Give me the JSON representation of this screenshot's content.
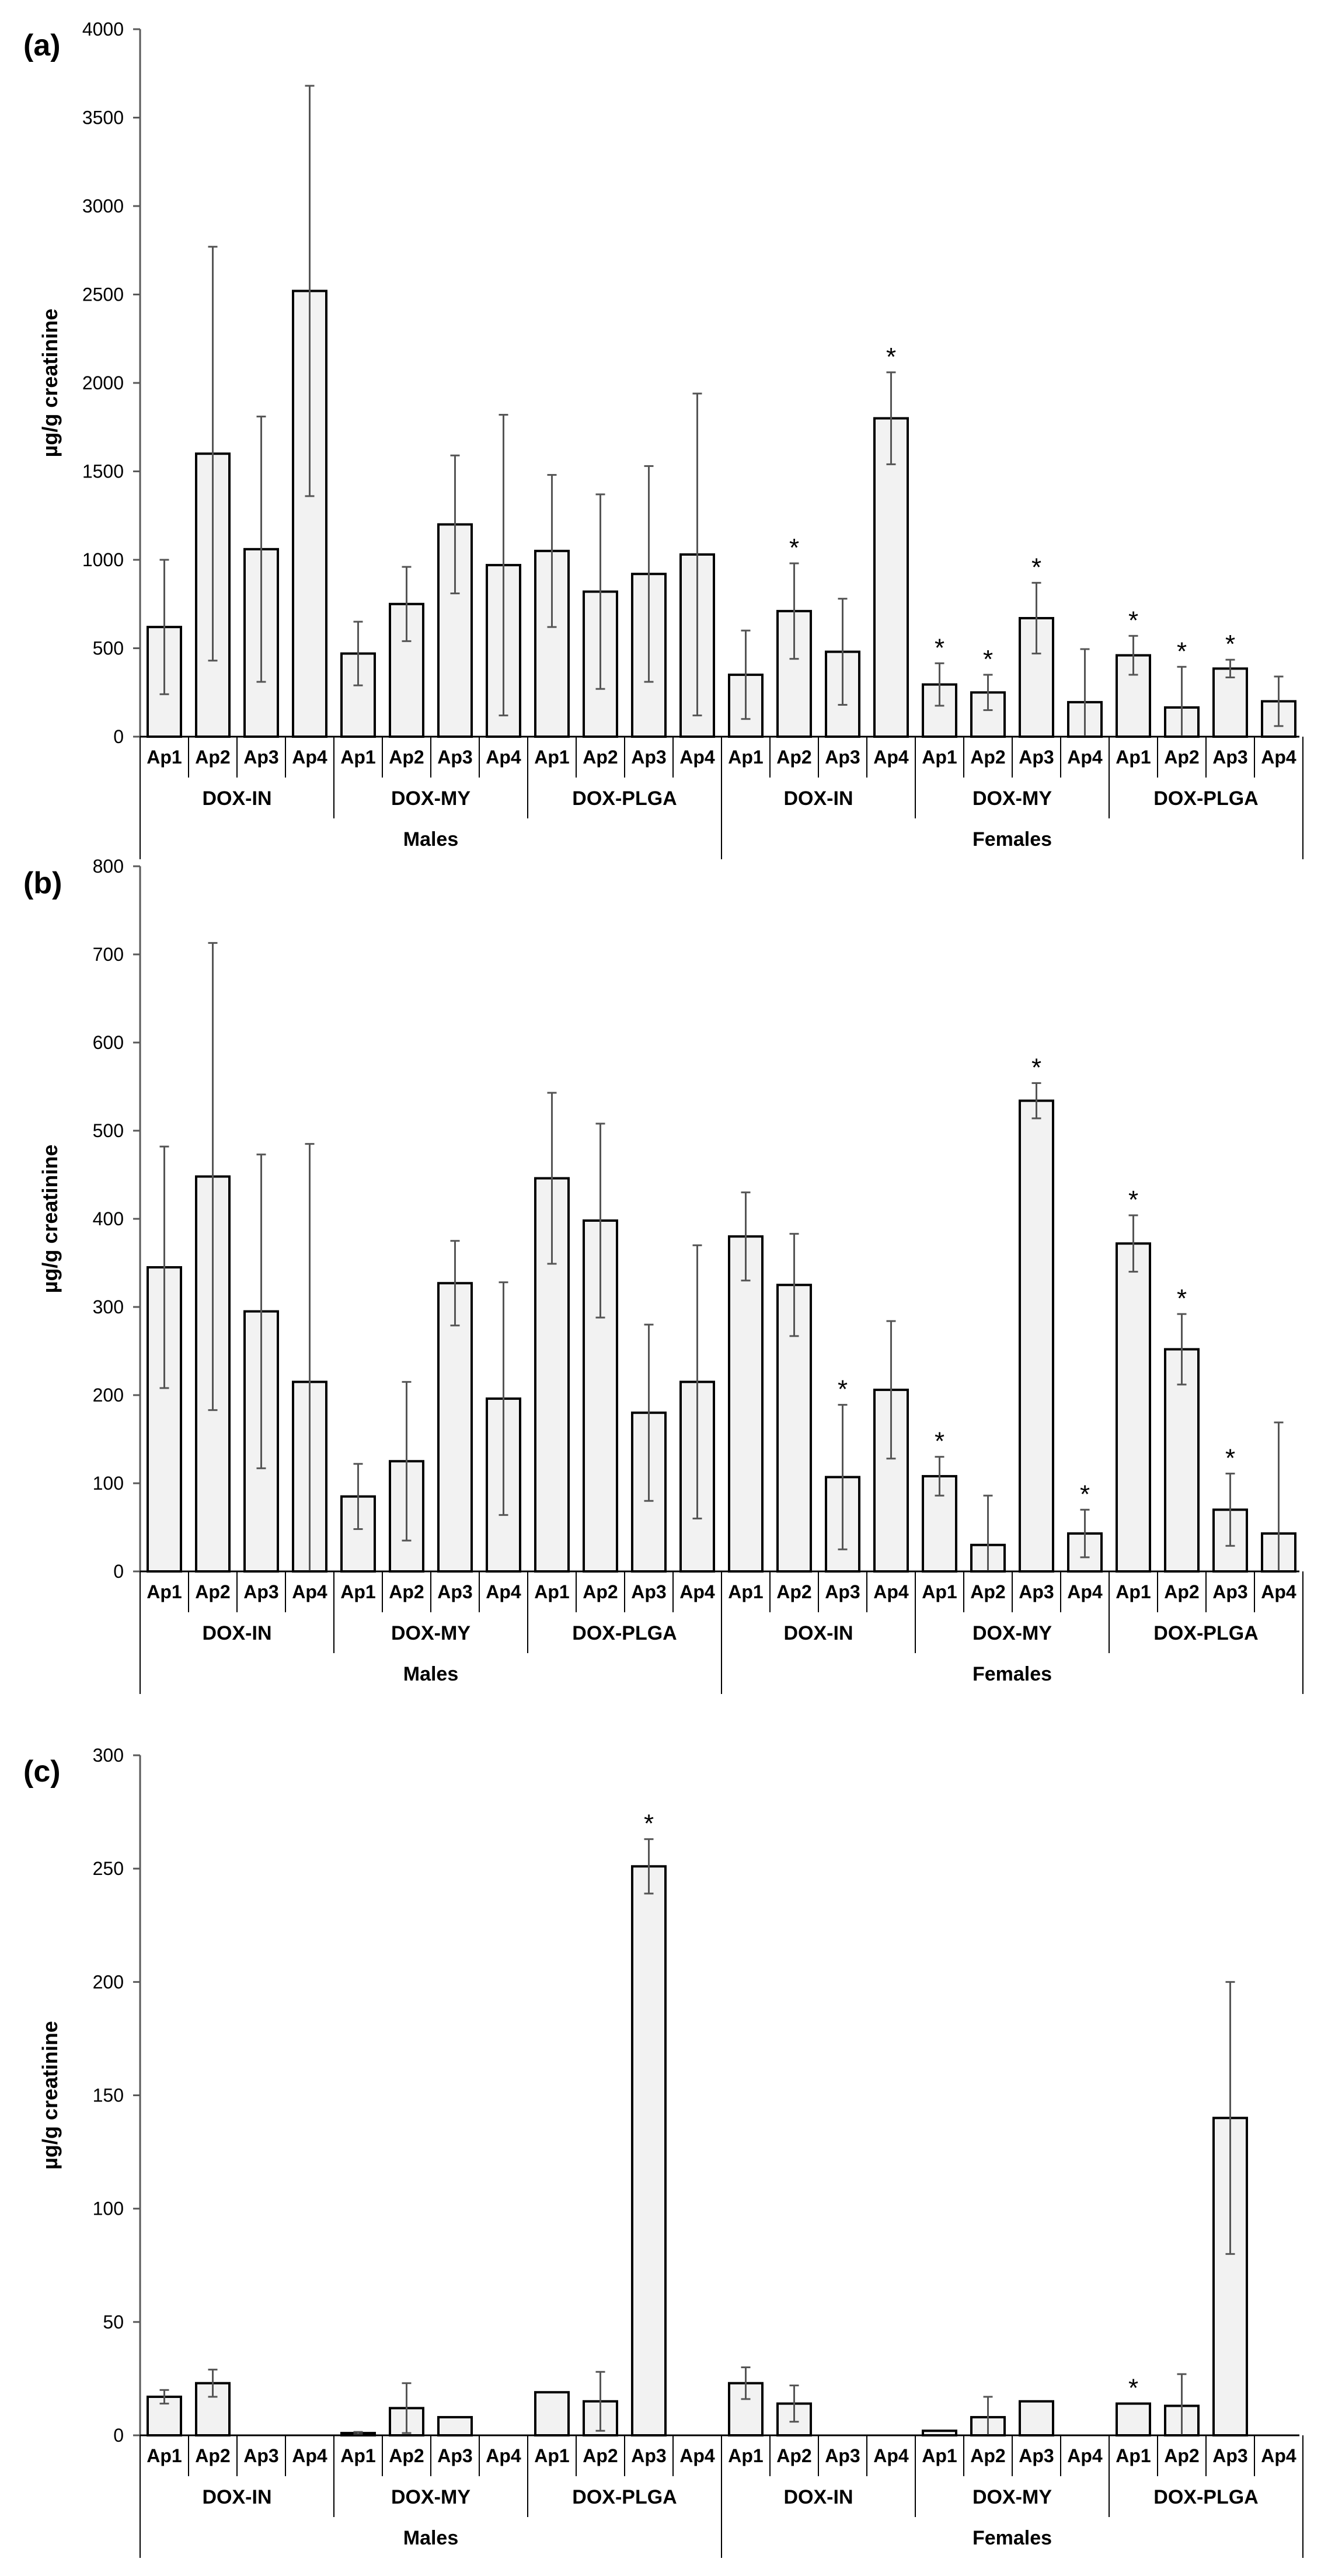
{
  "chart_data": [
    {
      "type": "bar",
      "panel_label": "(a)",
      "ylabel": "µg/g creatinine",
      "ylim": [
        0,
        4000
      ],
      "yticks": [
        0,
        500,
        1000,
        1500,
        2000,
        2500,
        3000,
        3500,
        4000
      ],
      "categories": [
        "Ap1",
        "Ap2",
        "Ap3",
        "Ap4",
        "Ap1",
        "Ap2",
        "Ap3",
        "Ap4",
        "Ap1",
        "Ap2",
        "Ap3",
        "Ap4",
        "Ap1",
        "Ap2",
        "Ap3",
        "Ap4",
        "Ap1",
        "Ap2",
        "Ap3",
        "Ap4",
        "Ap1",
        "Ap2",
        "Ap3",
        "Ap4"
      ],
      "groups": [
        {
          "label": "DOX-IN",
          "span": 4
        },
        {
          "label": "DOX-MY",
          "span": 4
        },
        {
          "label": "DOX-PLGA",
          "span": 4
        },
        {
          "label": "DOX-IN",
          "span": 4
        },
        {
          "label": "DOX-MY",
          "span": 4
        },
        {
          "label": "DOX-PLGA",
          "span": 4
        }
      ],
      "sexes": [
        {
          "label": "Males",
          "span": 12
        },
        {
          "label": "Females",
          "span": 12
        }
      ],
      "values": [
        620,
        1600,
        1060,
        2520,
        470,
        750,
        1200,
        970,
        1050,
        820,
        920,
        1030,
        350,
        710,
        480,
        1800,
        295,
        250,
        670,
        195,
        460,
        165,
        385,
        200
      ],
      "errors": [
        380,
        1170,
        750,
        1160,
        180,
        210,
        390,
        850,
        430,
        550,
        610,
        910,
        250,
        270,
        300,
        260,
        120,
        100,
        200,
        300,
        110,
        230,
        50,
        140
      ],
      "significant": [
        false,
        false,
        false,
        false,
        false,
        false,
        false,
        false,
        false,
        false,
        false,
        false,
        false,
        true,
        false,
        true,
        true,
        true,
        true,
        false,
        true,
        true,
        true,
        false
      ],
      "marker": "*"
    },
    {
      "type": "bar",
      "panel_label": "(b)",
      "ylabel": "µg/g creatinine",
      "ylim": [
        0,
        800
      ],
      "yticks": [
        0,
        100,
        200,
        300,
        400,
        500,
        600,
        700,
        800
      ],
      "categories": [
        "Ap1",
        "Ap2",
        "Ap3",
        "Ap4",
        "Ap1",
        "Ap2",
        "Ap3",
        "Ap4",
        "Ap1",
        "Ap2",
        "Ap3",
        "Ap4",
        "Ap1",
        "Ap2",
        "Ap3",
        "Ap4",
        "Ap1",
        "Ap2",
        "Ap3",
        "Ap4",
        "Ap1",
        "Ap2",
        "Ap3",
        "Ap4"
      ],
      "groups": [
        {
          "label": "DOX-IN",
          "span": 4
        },
        {
          "label": "DOX-MY",
          "span": 4
        },
        {
          "label": "DOX-PLGA",
          "span": 4
        },
        {
          "label": "DOX-IN",
          "span": 4
        },
        {
          "label": "DOX-MY",
          "span": 4
        },
        {
          "label": "DOX-PLGA",
          "span": 4
        }
      ],
      "sexes": [
        {
          "label": "Males",
          "span": 12
        },
        {
          "label": "Females",
          "span": 12
        }
      ],
      "values": [
        345,
        448,
        295,
        215,
        85,
        125,
        327,
        196,
        446,
        398,
        180,
        215,
        380,
        325,
        107,
        206,
        108,
        30,
        534,
        43,
        372,
        252,
        70,
        43
      ],
      "errors": [
        137,
        265,
        178,
        270,
        37,
        90,
        48,
        132,
        97,
        110,
        100,
        155,
        50,
        58,
        82,
        78,
        22,
        56,
        20,
        27,
        32,
        40,
        41,
        126
      ],
      "significant": [
        false,
        false,
        false,
        false,
        false,
        false,
        false,
        false,
        false,
        false,
        false,
        false,
        false,
        false,
        true,
        false,
        true,
        false,
        true,
        true,
        true,
        true,
        true,
        false
      ],
      "marker": "*"
    },
    {
      "type": "bar",
      "panel_label": "(c)",
      "ylabel": "µg/g creatinine",
      "ylim": [
        0,
        300
      ],
      "yticks": [
        0,
        50,
        100,
        150,
        200,
        250,
        300
      ],
      "categories": [
        "Ap1",
        "Ap2",
        "Ap3",
        "Ap4",
        "Ap1",
        "Ap2",
        "Ap3",
        "Ap4",
        "Ap1",
        "Ap2",
        "Ap3",
        "Ap4",
        "Ap1",
        "Ap2",
        "Ap3",
        "Ap4",
        "Ap1",
        "Ap2",
        "Ap3",
        "Ap4",
        "Ap1",
        "Ap2",
        "Ap3",
        "Ap4"
      ],
      "groups": [
        {
          "label": "DOX-IN",
          "span": 4
        },
        {
          "label": "DOX-MY",
          "span": 4
        },
        {
          "label": "DOX-PLGA",
          "span": 4
        },
        {
          "label": "DOX-IN",
          "span": 4
        },
        {
          "label": "DOX-MY",
          "span": 4
        },
        {
          "label": "DOX-PLGA",
          "span": 4
        }
      ],
      "sexes": [
        {
          "label": "Males",
          "span": 12
        },
        {
          "label": "Females",
          "span": 12
        }
      ],
      "values": [
        17,
        23,
        0,
        0,
        1,
        12,
        8,
        0,
        19,
        15,
        251,
        0,
        23,
        14,
        0,
        0,
        2,
        8,
        15,
        0,
        14,
        13,
        140,
        0
      ],
      "errors": [
        3,
        6,
        0,
        0,
        0.5,
        11,
        0,
        0,
        0,
        13,
        12,
        0,
        7,
        8,
        0,
        0,
        0,
        9,
        0,
        0,
        0,
        14,
        60,
        0
      ],
      "significant": [
        false,
        false,
        false,
        false,
        false,
        false,
        false,
        false,
        false,
        false,
        true,
        false,
        false,
        false,
        false,
        false,
        false,
        false,
        false,
        false,
        true,
        false,
        false,
        false
      ],
      "marker": "*"
    }
  ]
}
